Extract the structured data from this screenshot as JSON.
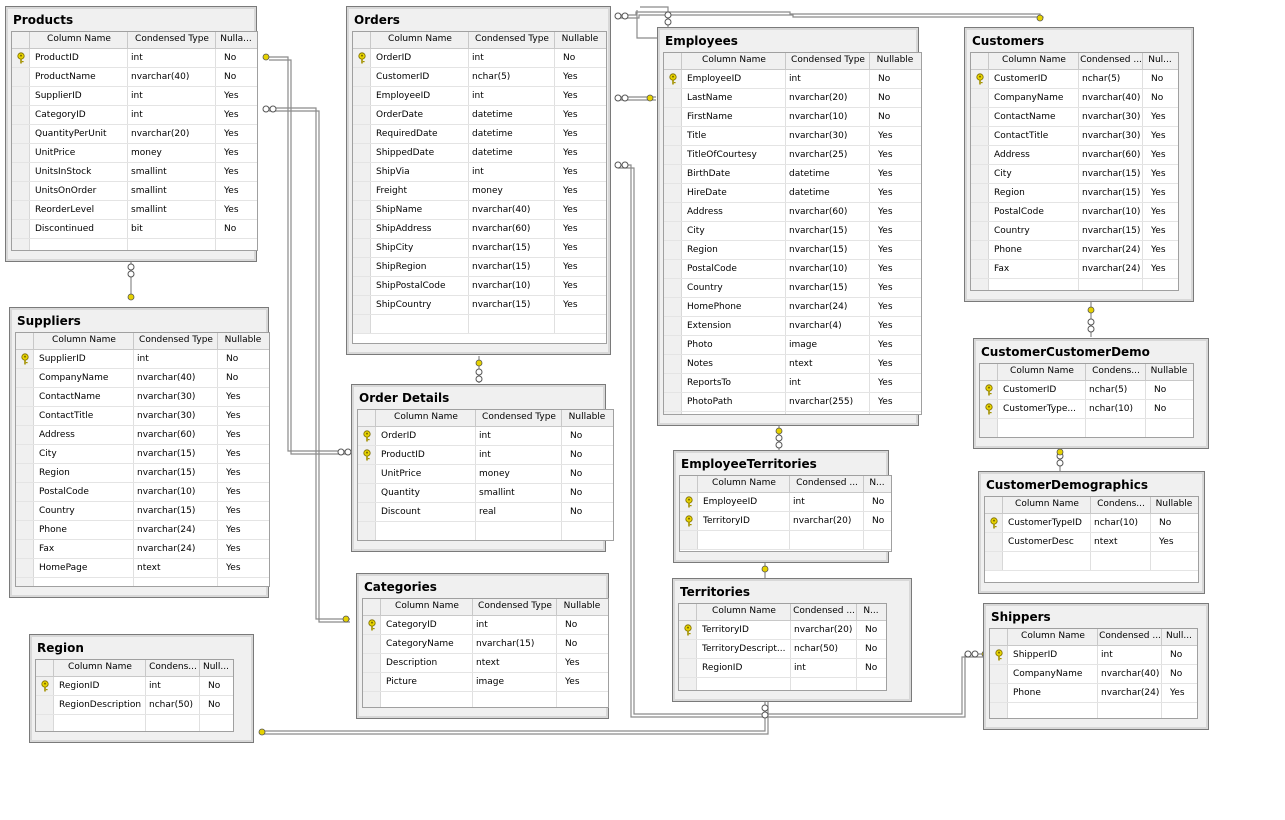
{
  "columns_header": {
    "name": "Column Name",
    "type": "Condensed Type",
    "nullable": "Nullable"
  },
  "tables": {
    "products": {
      "title": "Products",
      "hdr": [
        "Column Name",
        "Condensed Type",
        "Nulla..."
      ],
      "rows": [
        {
          "name": "ProductID",
          "type": "int",
          "null": "No",
          "pk": true
        },
        {
          "name": "ProductName",
          "type": "nvarchar(40)",
          "null": "No"
        },
        {
          "name": "SupplierID",
          "type": "int",
          "null": "Yes"
        },
        {
          "name": "CategoryID",
          "type": "int",
          "null": "Yes"
        },
        {
          "name": "QuantityPerUnit",
          "type": "nvarchar(20)",
          "null": "Yes"
        },
        {
          "name": "UnitPrice",
          "type": "money",
          "null": "Yes"
        },
        {
          "name": "UnitsInStock",
          "type": "smallint",
          "null": "Yes"
        },
        {
          "name": "UnitsOnOrder",
          "type": "smallint",
          "null": "Yes"
        },
        {
          "name": "ReorderLevel",
          "type": "smallint",
          "null": "Yes"
        },
        {
          "name": "Discontinued",
          "type": "bit",
          "null": "No"
        }
      ]
    },
    "orders": {
      "title": "Orders",
      "hdr": [
        "Column Name",
        "Condensed Type",
        "Nullable"
      ],
      "rows": [
        {
          "name": "OrderID",
          "type": "int",
          "null": "No",
          "pk": true
        },
        {
          "name": "CustomerID",
          "type": "nchar(5)",
          "null": "Yes"
        },
        {
          "name": "EmployeeID",
          "type": "int",
          "null": "Yes"
        },
        {
          "name": "OrderDate",
          "type": "datetime",
          "null": "Yes"
        },
        {
          "name": "RequiredDate",
          "type": "datetime",
          "null": "Yes"
        },
        {
          "name": "ShippedDate",
          "type": "datetime",
          "null": "Yes"
        },
        {
          "name": "ShipVia",
          "type": "int",
          "null": "Yes"
        },
        {
          "name": "Freight",
          "type": "money",
          "null": "Yes"
        },
        {
          "name": "ShipName",
          "type": "nvarchar(40)",
          "null": "Yes"
        },
        {
          "name": "ShipAddress",
          "type": "nvarchar(60)",
          "null": "Yes"
        },
        {
          "name": "ShipCity",
          "type": "nvarchar(15)",
          "null": "Yes"
        },
        {
          "name": "ShipRegion",
          "type": "nvarchar(15)",
          "null": "Yes"
        },
        {
          "name": "ShipPostalCode",
          "type": "nvarchar(10)",
          "null": "Yes"
        },
        {
          "name": "ShipCountry",
          "type": "nvarchar(15)",
          "null": "Yes"
        }
      ]
    },
    "employees": {
      "title": "Employees",
      "hdr": [
        "Column Name",
        "Condensed Type",
        "Nullable"
      ],
      "rows": [
        {
          "name": "EmployeeID",
          "type": "int",
          "null": "No",
          "pk": true
        },
        {
          "name": "LastName",
          "type": "nvarchar(20)",
          "null": "No"
        },
        {
          "name": "FirstName",
          "type": "nvarchar(10)",
          "null": "No"
        },
        {
          "name": "Title",
          "type": "nvarchar(30)",
          "null": "Yes"
        },
        {
          "name": "TitleOfCourtesy",
          "type": "nvarchar(25)",
          "null": "Yes"
        },
        {
          "name": "BirthDate",
          "type": "datetime",
          "null": "Yes"
        },
        {
          "name": "HireDate",
          "type": "datetime",
          "null": "Yes"
        },
        {
          "name": "Address",
          "type": "nvarchar(60)",
          "null": "Yes"
        },
        {
          "name": "City",
          "type": "nvarchar(15)",
          "null": "Yes"
        },
        {
          "name": "Region",
          "type": "nvarchar(15)",
          "null": "Yes"
        },
        {
          "name": "PostalCode",
          "type": "nvarchar(10)",
          "null": "Yes"
        },
        {
          "name": "Country",
          "type": "nvarchar(15)",
          "null": "Yes"
        },
        {
          "name": "HomePhone",
          "type": "nvarchar(24)",
          "null": "Yes"
        },
        {
          "name": "Extension",
          "type": "nvarchar(4)",
          "null": "Yes"
        },
        {
          "name": "Photo",
          "type": "image",
          "null": "Yes"
        },
        {
          "name": "Notes",
          "type": "ntext",
          "null": "Yes"
        },
        {
          "name": "ReportsTo",
          "type": "int",
          "null": "Yes"
        },
        {
          "name": "PhotoPath",
          "type": "nvarchar(255)",
          "null": "Yes"
        }
      ]
    },
    "customers": {
      "title": "Customers",
      "hdr": [
        "Column Name",
        "Condensed ...",
        "Nul..."
      ],
      "rows": [
        {
          "name": "CustomerID",
          "type": "nchar(5)",
          "null": "No",
          "pk": true
        },
        {
          "name": "CompanyName",
          "type": "nvarchar(40)",
          "null": "No"
        },
        {
          "name": "ContactName",
          "type": "nvarchar(30)",
          "null": "Yes"
        },
        {
          "name": "ContactTitle",
          "type": "nvarchar(30)",
          "null": "Yes"
        },
        {
          "name": "Address",
          "type": "nvarchar(60)",
          "null": "Yes"
        },
        {
          "name": "City",
          "type": "nvarchar(15)",
          "null": "Yes"
        },
        {
          "name": "Region",
          "type": "nvarchar(15)",
          "null": "Yes"
        },
        {
          "name": "PostalCode",
          "type": "nvarchar(10)",
          "null": "Yes"
        },
        {
          "name": "Country",
          "type": "nvarchar(15)",
          "null": "Yes"
        },
        {
          "name": "Phone",
          "type": "nvarchar(24)",
          "null": "Yes"
        },
        {
          "name": "Fax",
          "type": "nvarchar(24)",
          "null": "Yes"
        }
      ]
    },
    "suppliers": {
      "title": "Suppliers",
      "hdr": [
        "Column Name",
        "Condensed Type",
        "Nullable"
      ],
      "rows": [
        {
          "name": "SupplierID",
          "type": "int",
          "null": "No",
          "pk": true
        },
        {
          "name": "CompanyName",
          "type": "nvarchar(40)",
          "null": "No"
        },
        {
          "name": "ContactName",
          "type": "nvarchar(30)",
          "null": "Yes"
        },
        {
          "name": "ContactTitle",
          "type": "nvarchar(30)",
          "null": "Yes"
        },
        {
          "name": "Address",
          "type": "nvarchar(60)",
          "null": "Yes"
        },
        {
          "name": "City",
          "type": "nvarchar(15)",
          "null": "Yes"
        },
        {
          "name": "Region",
          "type": "nvarchar(15)",
          "null": "Yes"
        },
        {
          "name": "PostalCode",
          "type": "nvarchar(10)",
          "null": "Yes"
        },
        {
          "name": "Country",
          "type": "nvarchar(15)",
          "null": "Yes"
        },
        {
          "name": "Phone",
          "type": "nvarchar(24)",
          "null": "Yes"
        },
        {
          "name": "Fax",
          "type": "nvarchar(24)",
          "null": "Yes"
        },
        {
          "name": "HomePage",
          "type": "ntext",
          "null": "Yes"
        }
      ]
    },
    "order_details": {
      "title": "Order Details",
      "hdr": [
        "Column Name",
        "Condensed Type",
        "Nullable"
      ],
      "rows": [
        {
          "name": "OrderID",
          "type": "int",
          "null": "No",
          "pk": true
        },
        {
          "name": "ProductID",
          "type": "int",
          "null": "No",
          "pk": true
        },
        {
          "name": "UnitPrice",
          "type": "money",
          "null": "No"
        },
        {
          "name": "Quantity",
          "type": "smallint",
          "null": "No"
        },
        {
          "name": "Discount",
          "type": "real",
          "null": "No"
        }
      ]
    },
    "employee_territories": {
      "title": "EmployeeTerritories",
      "hdr": [
        "Column Name",
        "Condensed ...",
        "N..."
      ],
      "rows": [
        {
          "name": "EmployeeID",
          "type": "int",
          "null": "No",
          "pk": true
        },
        {
          "name": "TerritoryID",
          "type": "nvarchar(20)",
          "null": "No",
          "pk": true
        }
      ]
    },
    "customer_customer_demo": {
      "title": "CustomerCustomerDemo",
      "hdr": [
        "Column Name",
        "Condens...",
        "Nullable"
      ],
      "rows": [
        {
          "name": "CustomerID",
          "type": "nchar(5)",
          "null": "No",
          "pk": true
        },
        {
          "name": "CustomerType...",
          "type": "nchar(10)",
          "null": "No",
          "pk": true
        }
      ]
    },
    "customer_demographics": {
      "title": "CustomerDemographics",
      "hdr": [
        "Column Name",
        "Condens...",
        "Nullable"
      ],
      "rows": [
        {
          "name": "CustomerTypeID",
          "type": "nchar(10)",
          "null": "No",
          "pk": true
        },
        {
          "name": "CustomerDesc",
          "type": "ntext",
          "null": "Yes"
        }
      ]
    },
    "categories": {
      "title": "Categories",
      "hdr": [
        "Column Name",
        "Condensed Type",
        "Nullable"
      ],
      "rows": [
        {
          "name": "CategoryID",
          "type": "int",
          "null": "No",
          "pk": true
        },
        {
          "name": "CategoryName",
          "type": "nvarchar(15)",
          "null": "No"
        },
        {
          "name": "Description",
          "type": "ntext",
          "null": "Yes"
        },
        {
          "name": "Picture",
          "type": "image",
          "null": "Yes"
        }
      ]
    },
    "territories": {
      "title": "Territories",
      "hdr": [
        "Column Name",
        "Condensed ...",
        "N..."
      ],
      "rows": [
        {
          "name": "TerritoryID",
          "type": "nvarchar(20)",
          "null": "No",
          "pk": true
        },
        {
          "name": "TerritoryDescript...",
          "type": "nchar(50)",
          "null": "No"
        },
        {
          "name": "RegionID",
          "type": "int",
          "null": "No"
        }
      ]
    },
    "region": {
      "title": "Region",
      "hdr": [
        "Column Name",
        "Condens...",
        "Null..."
      ],
      "rows": [
        {
          "name": "RegionID",
          "type": "int",
          "null": "No",
          "pk": true
        },
        {
          "name": "RegionDescription",
          "type": "nchar(50)",
          "null": "No"
        }
      ]
    },
    "shippers": {
      "title": "Shippers",
      "hdr": [
        "Column Name",
        "Condensed ...",
        "Null..."
      ],
      "rows": [
        {
          "name": "ShipperID",
          "type": "int",
          "null": "No",
          "pk": true
        },
        {
          "name": "CompanyName",
          "type": "nvarchar(40)",
          "null": "No"
        },
        {
          "name": "Phone",
          "type": "nvarchar(24)",
          "null": "Yes"
        }
      ]
    }
  },
  "colors": {
    "key": "#e6d200",
    "line": "#808080",
    "panel": "#f0f0f0"
  }
}
